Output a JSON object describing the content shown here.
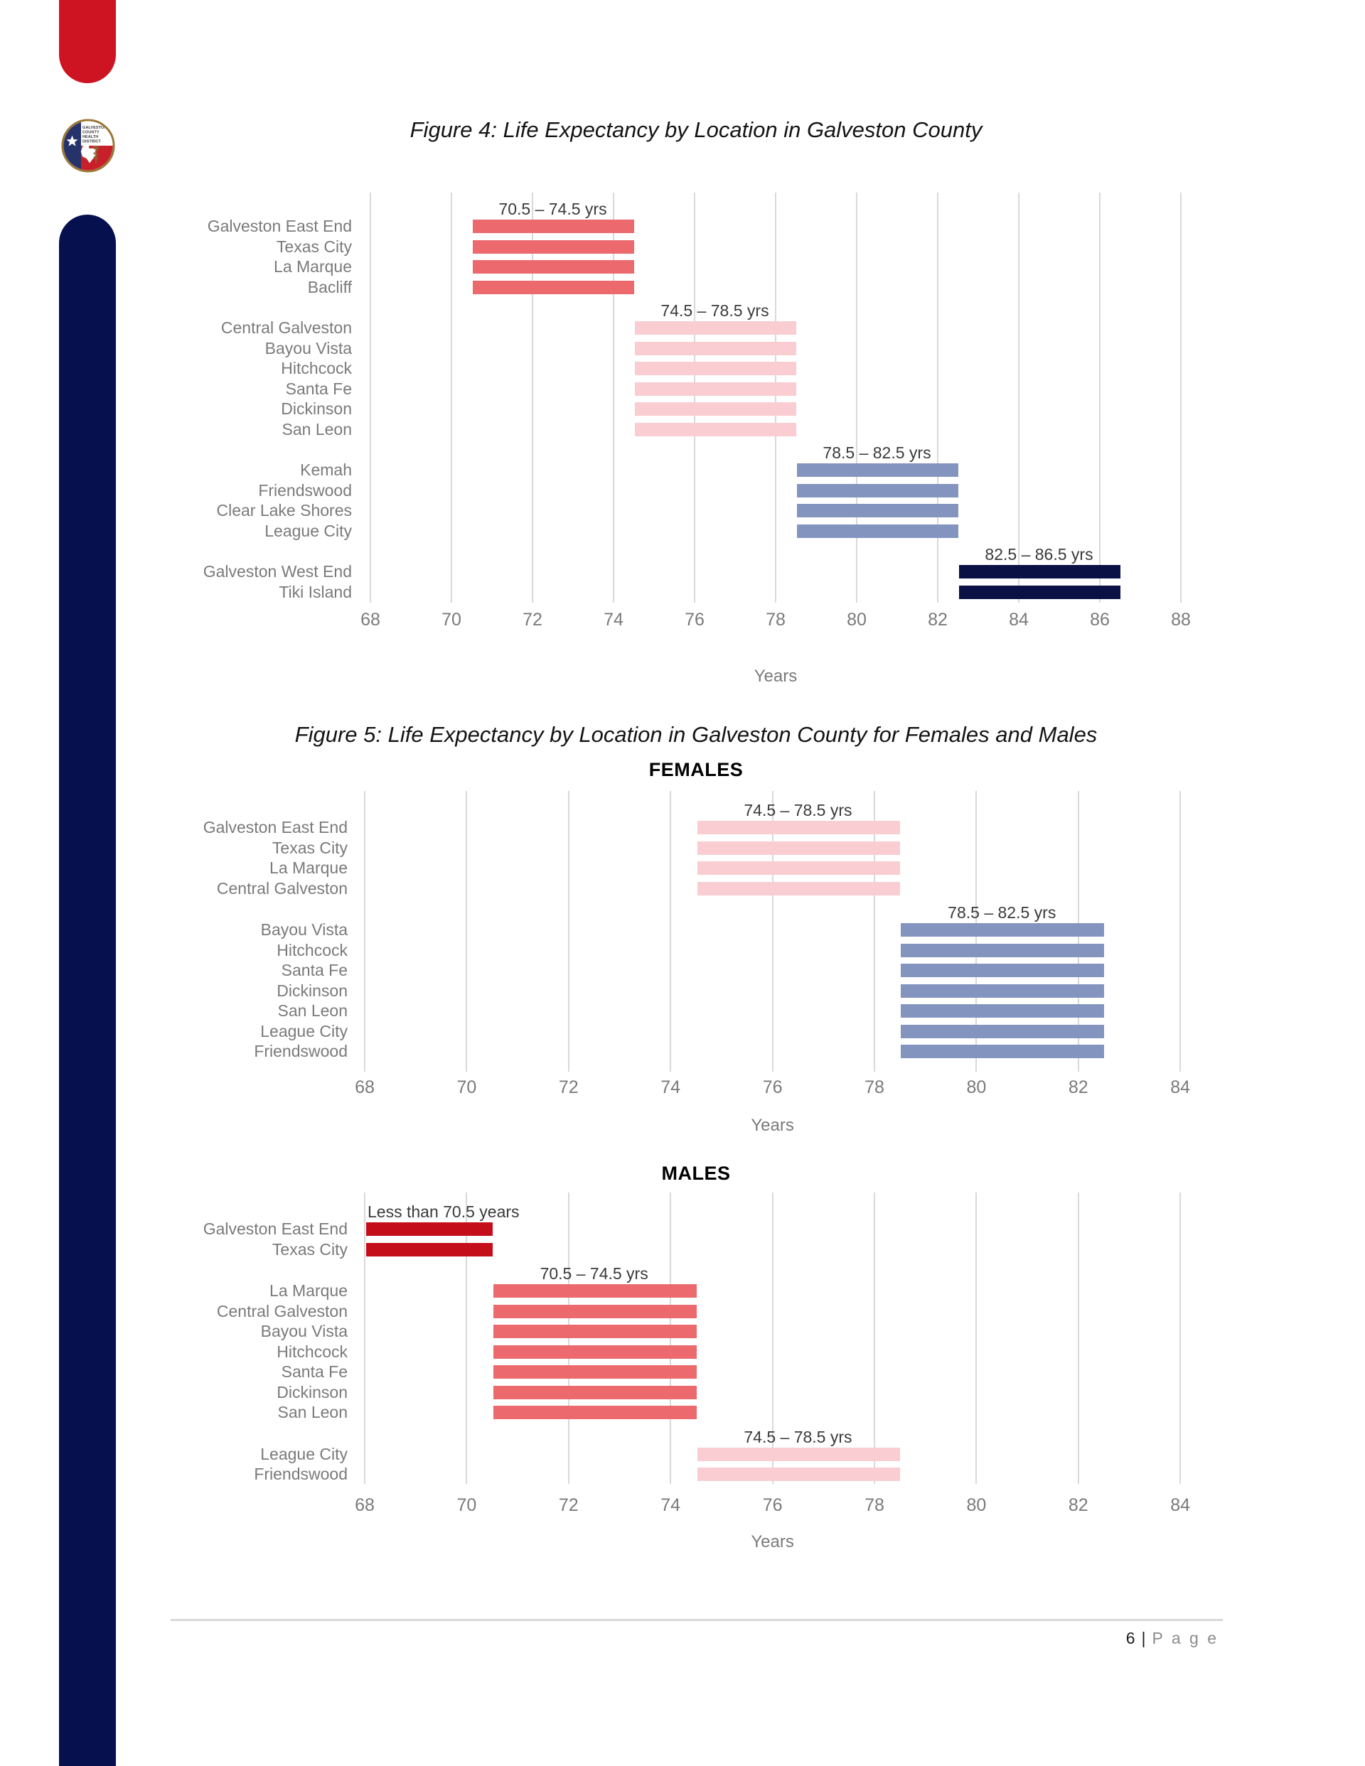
{
  "logo": {
    "lines": [
      "GALVESTON",
      "COUNTY",
      "HEALTH",
      "DISTRICT"
    ]
  },
  "figure5_title": "Figure 5: Life Expectancy by Location in Galveston County for Females and Males",
  "chart_data": [
    {
      "id": "figure4",
      "type": "bar",
      "title": "Figure 4: Life Expectancy by Location in Galveston County",
      "xlabel": "Years",
      "xlim": [
        68,
        88
      ],
      "ticks": [
        68,
        70,
        72,
        74,
        76,
        78,
        80,
        82,
        84,
        86,
        88
      ],
      "grid": true,
      "legend_position": "none",
      "groups": [
        {
          "label": "70.5 – 74.5 yrs",
          "start": 70.5,
          "end": 74.5,
          "color": "salmon",
          "locations": [
            "Galveston East End",
            "Texas City",
            "La Marque",
            "Bacliff"
          ]
        },
        {
          "label": "74.5 – 78.5 yrs",
          "start": 74.5,
          "end": 78.5,
          "color": "pink",
          "locations": [
            "Central Galveston",
            "Bayou Vista",
            "Hitchcock",
            "Santa Fe",
            "Dickinson",
            "San Leon"
          ]
        },
        {
          "label": "78.5 – 82.5 yrs",
          "start": 78.5,
          "end": 82.5,
          "color": "steelblue",
          "locations": [
            "Kemah",
            "Friendswood",
            "Clear Lake Shores",
            "League City"
          ]
        },
        {
          "label": "82.5 – 86.5 yrs",
          "start": 82.5,
          "end": 86.5,
          "color": "navy",
          "locations": [
            "Galveston West End",
            "Tiki Island"
          ]
        }
      ]
    },
    {
      "id": "figure5-females",
      "type": "bar",
      "panel_title": "FEMALES",
      "xlabel": "Years",
      "xlim": [
        68,
        84
      ],
      "ticks": [
        68,
        70,
        72,
        74,
        76,
        78,
        80,
        82,
        84
      ],
      "grid": true,
      "legend_position": "none",
      "groups": [
        {
          "label": "74.5 – 78.5 yrs",
          "start": 74.5,
          "end": 78.5,
          "color": "pink",
          "locations": [
            "Galveston East End",
            "Texas City",
            "La Marque",
            "Central Galveston"
          ]
        },
        {
          "label": "78.5 – 82.5 yrs",
          "start": 78.5,
          "end": 82.5,
          "color": "steelblue",
          "locations": [
            "Bayou Vista",
            "Hitchcock",
            "Santa Fe",
            "Dickinson",
            "San Leon",
            "League City",
            "Friendswood"
          ]
        }
      ]
    },
    {
      "id": "figure5-males",
      "type": "bar",
      "panel_title": "MALES",
      "xlabel": "Years",
      "xlim": [
        68,
        84
      ],
      "ticks": [
        68,
        70,
        72,
        74,
        76,
        78,
        80,
        82,
        84
      ],
      "grid": true,
      "legend_position": "none",
      "groups": [
        {
          "label": "Less than 70.5 years",
          "start": 68,
          "end": 70.5,
          "color": "crimson",
          "align": "left",
          "locations": [
            "Galveston East End",
            "Texas City"
          ]
        },
        {
          "label": "70.5 – 74.5 yrs",
          "start": 70.5,
          "end": 74.5,
          "color": "salmon",
          "locations": [
            "La Marque",
            "Central Galveston",
            "Bayou Vista",
            "Hitchcock",
            "Santa Fe",
            "Dickinson",
            "San Leon"
          ]
        },
        {
          "label": "74.5 – 78.5 yrs",
          "start": 74.5,
          "end": 78.5,
          "color": "pink",
          "locations": [
            "League City",
            "Friendswood"
          ]
        }
      ]
    }
  ],
  "footer": {
    "page_number": "6",
    "separator": "|",
    "page_word": "P a g e"
  },
  "colors": {
    "salmon": "#EC6A6E",
    "pink": "#F9CDD1",
    "steelblue": "#8394BF",
    "navy": "#0A1144",
    "crimson": "#C40E1A",
    "accent_red": "#CE1423",
    "sidebar_navy": "#06104E",
    "gridline": "#D9D9D9",
    "label_gray": "#7A7A7A",
    "range_label_gray": "#3A3A3A"
  }
}
